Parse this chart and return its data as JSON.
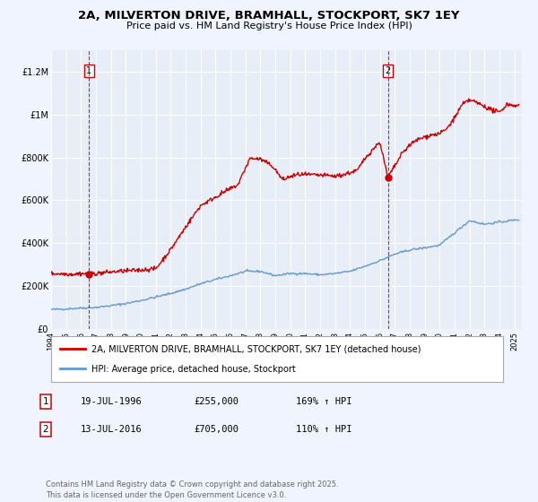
{
  "title": "2A, MILVERTON DRIVE, BRAMHALL, STOCKPORT, SK7 1EY",
  "subtitle": "Price paid vs. HM Land Registry's House Price Index (HPI)",
  "title_fontsize": 9.5,
  "subtitle_fontsize": 8,
  "bg_color": "#f0f4ff",
  "plot_bg_color": "#e8eef8",
  "grid_color": "#ffffff",
  "red_line_color": "#cc0000",
  "blue_line_color": "#6699cc",
  "ylim": [
    0,
    1300000
  ],
  "xlim_start": 1994.0,
  "xlim_end": 2025.5,
  "yticks": [
    0,
    200000,
    400000,
    600000,
    800000,
    1000000,
    1200000
  ],
  "ytick_labels": [
    "£0",
    "£200K",
    "£400K",
    "£600K",
    "£800K",
    "£1M",
    "£1.2M"
  ],
  "xticks": [
    1994,
    1995,
    1996,
    1997,
    1998,
    1999,
    2000,
    2001,
    2002,
    2003,
    2004,
    2005,
    2006,
    2007,
    2008,
    2009,
    2010,
    2011,
    2012,
    2013,
    2014,
    2015,
    2016,
    2017,
    2018,
    2019,
    2020,
    2021,
    2022,
    2023,
    2024,
    2025
  ],
  "sale1_x": 1996.54,
  "sale1_y": 255000,
  "sale2_x": 2016.53,
  "sale2_y": 705000,
  "legend_label_red": "2A, MILVERTON DRIVE, BRAMHALL, STOCKPORT, SK7 1EY (detached house)",
  "legend_label_blue": "HPI: Average price, detached house, Stockport",
  "table_row1": [
    "1",
    "19-JUL-1996",
    "£255,000",
    "169% ↑ HPI"
  ],
  "table_row2": [
    "2",
    "13-JUL-2016",
    "£705,000",
    "110% ↑ HPI"
  ],
  "footnote": "Contains HM Land Registry data © Crown copyright and database right 2025.\nThis data is licensed under the Open Government Licence v3.0.",
  "footnote_fontsize": 6.0
}
